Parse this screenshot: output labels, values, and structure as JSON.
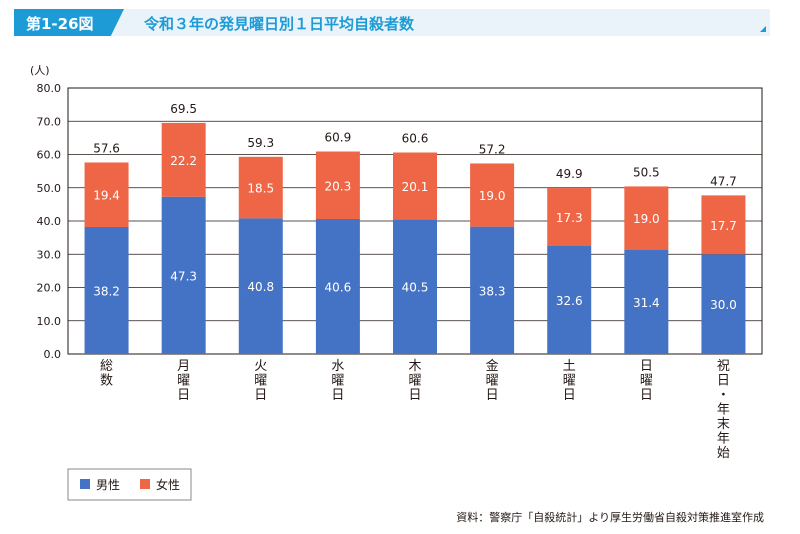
{
  "header": {
    "figure_number": "第1-26図",
    "title": "令和３年の発見曜日別１日平均自殺者数"
  },
  "chart_data": {
    "type": "bar",
    "stacked": true,
    "ylabel": "(人)",
    "ylim": [
      0,
      80
    ],
    "yticks": [
      "0.0",
      "10.0",
      "20.0",
      "30.0",
      "40.0",
      "50.0",
      "60.0",
      "70.0",
      "80.0"
    ],
    "categories": [
      "総数",
      "月曜日",
      "火曜日",
      "水曜日",
      "木曜日",
      "金曜日",
      "土曜日",
      "日曜日",
      "祝日・年末年始"
    ],
    "series": [
      {
        "name": "男性",
        "color": "#4472c4",
        "values": [
          38.2,
          47.3,
          40.8,
          40.6,
          40.5,
          38.3,
          32.6,
          31.4,
          30.0
        ],
        "labels": [
          "38.2",
          "47.3",
          "40.8",
          "40.6",
          "40.5",
          "38.3",
          "32.6",
          "31.4",
          "30.0"
        ]
      },
      {
        "name": "女性",
        "color": "#ee6645",
        "values": [
          19.4,
          22.2,
          18.5,
          20.3,
          20.1,
          19.0,
          17.3,
          19.0,
          17.7
        ],
        "labels": [
          "19.4",
          "22.2",
          "18.5",
          "20.3",
          "20.1",
          "19.0",
          "17.3",
          "19.0",
          "17.7"
        ]
      }
    ],
    "totals": [
      57.6,
      69.5,
      59.3,
      60.9,
      60.6,
      57.2,
      49.9,
      50.5,
      47.7
    ],
    "total_labels": [
      "57.6",
      "69.5",
      "59.3",
      "60.9",
      "60.6",
      "57.2",
      "49.9",
      "50.5",
      "47.7"
    ],
    "grid": true,
    "legend_position": "bottom-left"
  },
  "source": "資料：警察庁「自殺統計」より厚生労働省自殺対策推進室作成"
}
